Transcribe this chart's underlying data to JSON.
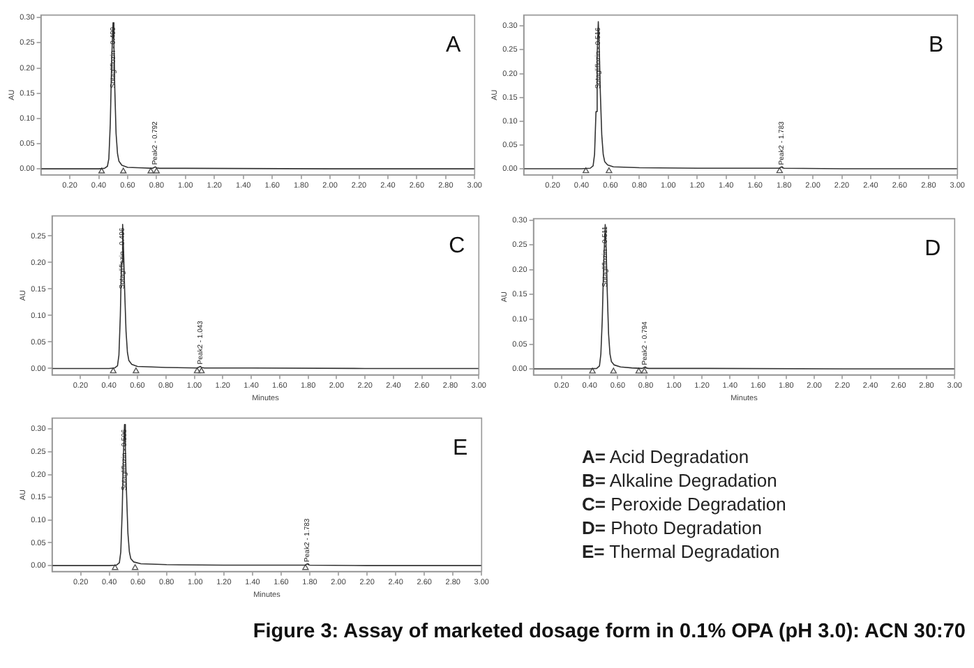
{
  "chart_data": [
    {
      "type": "line",
      "title": "A",
      "ylabel": "AU",
      "xlim": [
        0,
        3
      ],
      "ylim": [
        -0.012,
        0.305
      ],
      "xticks": [
        {
          "value": 0.2,
          "label": "0.20"
        },
        {
          "value": 0.4,
          "label": "0.40"
        },
        {
          "value": 0.6,
          "label": "0.60"
        },
        {
          "value": 0.8,
          "label": "0.80"
        },
        {
          "value": 1,
          "label": "1.00"
        },
        {
          "value": 1.2,
          "label": "1.20"
        },
        {
          "value": 1.4,
          "label": "1.40"
        },
        {
          "value": 1.6,
          "label": "1.60"
        },
        {
          "value": 1.8,
          "label": "1.80"
        },
        {
          "value": 2,
          "label": "2.00"
        },
        {
          "value": 2.2,
          "label": "2.20"
        },
        {
          "value": 2.4,
          "label": "2.40"
        },
        {
          "value": 2.6,
          "label": "2.60"
        },
        {
          "value": 2.8,
          "label": "2.80"
        },
        {
          "value": 3,
          "label": "3.00"
        }
      ],
      "yticks": [
        {
          "value": 0,
          "label": "0.00"
        },
        {
          "value": 0.05,
          "label": "0.05"
        },
        {
          "value": 0.1,
          "label": "0.10"
        },
        {
          "value": 0.15,
          "label": "0.15"
        },
        {
          "value": 0.2,
          "label": "0.20"
        },
        {
          "value": 0.25,
          "label": "0.25"
        },
        {
          "value": 0.3,
          "label": "0.30"
        }
      ],
      "series": [
        {
          "type": "line",
          "color": "#333333",
          "marker": "none",
          "x": [
            0,
            0.4,
            0.44,
            0.46,
            0.47,
            0.48,
            0.49,
            0.499,
            0.505,
            0.51,
            0.52,
            0.53,
            0.54,
            0.56,
            0.6,
            0.7,
            0.77,
            0.785,
            0.792,
            0.8,
            0.82,
            1,
            2,
            3
          ],
          "values": [
            0,
            0,
            0.001,
            0.005,
            0.02,
            0.09,
            0.22,
            0.29,
            0.25,
            0.17,
            0.07,
            0.03,
            0.015,
            0.007,
            0.003,
            0.002,
            0.001,
            0.003,
            0.004,
            0.002,
            0.001,
            0.001,
            0,
            0
          ]
        },
        {
          "type": "scatter",
          "color": "#555555",
          "marker": "triangle",
          "x": [
            0.42,
            0.57,
            0.76,
            0.8
          ],
          "values": [
            -0.005,
            -0.005,
            -0.005,
            -0.005
          ]
        }
      ],
      "annotations": [
        {
          "text": "Sotagliflozin - 0.499",
          "x": 0.499,
          "y": 0.16
        },
        {
          "text": "Peak2 - 0.792",
          "x": 0.792,
          "y": 0.008
        }
      ]
    },
    {
      "type": "line",
      "title": "B",
      "ylabel": "AU",
      "xlim": [
        0,
        3
      ],
      "ylim": [
        -0.013,
        0.323
      ],
      "xticks": [
        {
          "value": 0.2,
          "label": "0.20"
        },
        {
          "value": 0.4,
          "label": "0.40"
        },
        {
          "value": 0.6,
          "label": "0.60"
        },
        {
          "value": 0.8,
          "label": "0.80"
        },
        {
          "value": 1,
          "label": "1.00"
        },
        {
          "value": 1.2,
          "label": "1.20"
        },
        {
          "value": 1.4,
          "label": "1.40"
        },
        {
          "value": 1.6,
          "label": "1.60"
        },
        {
          "value": 1.8,
          "label": "1.80"
        },
        {
          "value": 2,
          "label": "2.00"
        },
        {
          "value": 2.2,
          "label": "2.20"
        },
        {
          "value": 2.4,
          "label": "2.40"
        },
        {
          "value": 2.6,
          "label": "2.60"
        },
        {
          "value": 2.8,
          "label": "2.80"
        },
        {
          "value": 3,
          "label": "3.00"
        }
      ],
      "yticks": [
        {
          "value": 0,
          "label": "0.00"
        },
        {
          "value": 0.05,
          "label": "0.05"
        },
        {
          "value": 0.1,
          "label": "0.10"
        },
        {
          "value": 0.15,
          "label": "0.15"
        },
        {
          "value": 0.2,
          "label": "0.20"
        },
        {
          "value": 0.25,
          "label": "0.25"
        },
        {
          "value": 0.3,
          "label": "0.30"
        }
      ],
      "series": [
        {
          "type": "line",
          "color": "#333333",
          "marker": "none",
          "x": [
            0,
            0.4,
            0.46,
            0.48,
            0.49,
            0.5,
            0.508,
            0.516,
            0.522,
            0.53,
            0.54,
            0.55,
            0.56,
            0.58,
            0.62,
            0.8,
            1.2,
            1.77,
            1.778,
            1.783,
            1.79,
            1.8,
            2.2,
            3
          ],
          "values": [
            0,
            0,
            0.001,
            0.006,
            0.03,
            0.12,
            0.24,
            0.309,
            0.26,
            0.16,
            0.07,
            0.03,
            0.015,
            0.008,
            0.004,
            0.002,
            0.001,
            0.001,
            0.003,
            0.004,
            0.002,
            0.001,
            0,
            0
          ]
        },
        {
          "type": "scatter",
          "color": "#555555",
          "marker": "triangle",
          "x": [
            0.43,
            0.59,
            1.77
          ],
          "values": [
            -0.005,
            -0.005,
            -0.005
          ]
        }
      ],
      "annotations": [
        {
          "text": "Sotagliflozin - 0.516",
          "x": 0.516,
          "y": 0.168
        },
        {
          "text": "Peak2 - 1.783",
          "x": 1.783,
          "y": 0.008
        }
      ]
    },
    {
      "type": "line",
      "title": "C",
      "xlabel": "Minutes",
      "ylabel": "AU",
      "xlim": [
        0,
        3
      ],
      "ylim": [
        -0.012,
        0.288
      ],
      "xticks": [
        {
          "value": 0.2,
          "label": "0.20"
        },
        {
          "value": 0.4,
          "label": "0.40"
        },
        {
          "value": 0.6,
          "label": "0.60"
        },
        {
          "value": 0.8,
          "label": "0.80"
        },
        {
          "value": 1,
          "label": "1.00"
        },
        {
          "value": 1.2,
          "label": "1.20"
        },
        {
          "value": 1.4,
          "label": "1.40"
        },
        {
          "value": 1.6,
          "label": "1.60"
        },
        {
          "value": 1.8,
          "label": "1.80"
        },
        {
          "value": 2,
          "label": "2.00"
        },
        {
          "value": 2.2,
          "label": "2.20"
        },
        {
          "value": 2.4,
          "label": "2.40"
        },
        {
          "value": 2.6,
          "label": "2.60"
        },
        {
          "value": 2.8,
          "label": "2.80"
        },
        {
          "value": 3,
          "label": "3.00"
        }
      ],
      "yticks": [
        {
          "value": 0,
          "label": "0.00"
        },
        {
          "value": 0.05,
          "label": "0.05"
        },
        {
          "value": 0.1,
          "label": "0.10"
        },
        {
          "value": 0.15,
          "label": "0.15"
        },
        {
          "value": 0.2,
          "label": "0.20"
        },
        {
          "value": 0.25,
          "label": "0.25"
        }
      ],
      "series": [
        {
          "type": "line",
          "color": "#333333",
          "marker": "none",
          "x": [
            0,
            0.4,
            0.44,
            0.46,
            0.47,
            0.48,
            0.488,
            0.496,
            0.502,
            0.51,
            0.52,
            0.53,
            0.54,
            0.56,
            0.6,
            0.8,
            1.02,
            1.035,
            1.043,
            1.05,
            1.07,
            1.4,
            2.2,
            3
          ],
          "values": [
            0,
            0,
            0.001,
            0.005,
            0.025,
            0.1,
            0.2,
            0.272,
            0.23,
            0.15,
            0.07,
            0.03,
            0.015,
            0.008,
            0.004,
            0.002,
            0.001,
            0.003,
            0.004,
            0.002,
            0.001,
            0.001,
            0,
            0
          ]
        },
        {
          "type": "scatter",
          "color": "#555555",
          "marker": "triangle",
          "x": [
            0.43,
            0.59,
            1.02,
            1.05
          ],
          "values": [
            -0.005,
            -0.005,
            -0.005,
            -0.005
          ]
        }
      ],
      "annotations": [
        {
          "text": "Sotagliflozin - 0.496",
          "x": 0.496,
          "y": 0.15
        },
        {
          "text": "Peak2 - 1.043",
          "x": 1.043,
          "y": 0.008
        }
      ]
    },
    {
      "type": "line",
      "title": "D",
      "xlabel": "Minutes",
      "ylabel": "AU",
      "xlim": [
        0,
        3
      ],
      "ylim": [
        -0.012,
        0.303
      ],
      "xticks": [
        {
          "value": 0.2,
          "label": "0.20"
        },
        {
          "value": 0.4,
          "label": "0.40"
        },
        {
          "value": 0.6,
          "label": "0.60"
        },
        {
          "value": 0.8,
          "label": "0.80"
        },
        {
          "value": 1,
          "label": "1.00"
        },
        {
          "value": 1.2,
          "label": "1.20"
        },
        {
          "value": 1.4,
          "label": "1.40"
        },
        {
          "value": 1.6,
          "label": "1.60"
        },
        {
          "value": 1.8,
          "label": "1.80"
        },
        {
          "value": 2,
          "label": "2.00"
        },
        {
          "value": 2.2,
          "label": "2.20"
        },
        {
          "value": 2.4,
          "label": "2.40"
        },
        {
          "value": 2.6,
          "label": "2.60"
        },
        {
          "value": 2.8,
          "label": "2.80"
        },
        {
          "value": 3,
          "label": "3.00"
        }
      ],
      "yticks": [
        {
          "value": 0,
          "label": "0.00"
        },
        {
          "value": 0.05,
          "label": "0.05"
        },
        {
          "value": 0.1,
          "label": "0.10"
        },
        {
          "value": 0.15,
          "label": "0.15"
        },
        {
          "value": 0.2,
          "label": "0.20"
        },
        {
          "value": 0.25,
          "label": "0.25"
        },
        {
          "value": 0.3,
          "label": "0.30"
        }
      ],
      "series": [
        {
          "type": "line",
          "color": "#333333",
          "marker": "none",
          "x": [
            0,
            0.4,
            0.45,
            0.47,
            0.48,
            0.49,
            0.5,
            0.511,
            0.517,
            0.525,
            0.535,
            0.545,
            0.555,
            0.575,
            0.62,
            0.7,
            0.775,
            0.788,
            0.794,
            0.8,
            0.82,
            1.2,
            2.2,
            3
          ],
          "values": [
            0,
            0,
            0.001,
            0.006,
            0.03,
            0.1,
            0.21,
            0.291,
            0.25,
            0.16,
            0.07,
            0.03,
            0.015,
            0.008,
            0.004,
            0.002,
            0.001,
            0.003,
            0.004,
            0.002,
            0.001,
            0.001,
            0,
            0
          ]
        },
        {
          "type": "scatter",
          "color": "#555555",
          "marker": "triangle",
          "x": [
            0.42,
            0.57,
            0.75,
            0.79
          ],
          "values": [
            -0.005,
            -0.005,
            -0.005,
            -0.005
          ]
        }
      ],
      "annotations": [
        {
          "text": "Sotagliflozin - 0.511",
          "x": 0.511,
          "y": 0.165
        },
        {
          "text": "Peak2 - 0.794",
          "x": 0.794,
          "y": 0.008
        }
      ]
    },
    {
      "type": "line",
      "title": "E",
      "xlabel": "Minutes",
      "ylabel": "AU",
      "xlim": [
        0,
        3
      ],
      "ylim": [
        -0.013,
        0.324
      ],
      "xticks": [
        {
          "value": 0.2,
          "label": "0.20"
        },
        {
          "value": 0.4,
          "label": "0.40"
        },
        {
          "value": 0.6,
          "label": "0.60"
        },
        {
          "value": 0.8,
          "label": "0.80"
        },
        {
          "value": 1,
          "label": "1.00"
        },
        {
          "value": 1.2,
          "label": "1.20"
        },
        {
          "value": 1.4,
          "label": "1.40"
        },
        {
          "value": 1.6,
          "label": "1.60"
        },
        {
          "value": 1.8,
          "label": "1.80"
        },
        {
          "value": 2,
          "label": "2.00"
        },
        {
          "value": 2.2,
          "label": "2.20"
        },
        {
          "value": 2.4,
          "label": "2.40"
        },
        {
          "value": 2.6,
          "label": "2.60"
        },
        {
          "value": 2.8,
          "label": "2.80"
        },
        {
          "value": 3,
          "label": "3.00"
        }
      ],
      "yticks": [
        {
          "value": 0,
          "label": "0.00"
        },
        {
          "value": 0.05,
          "label": "0.05"
        },
        {
          "value": 0.1,
          "label": "0.10"
        },
        {
          "value": 0.15,
          "label": "0.15"
        },
        {
          "value": 0.2,
          "label": "0.20"
        },
        {
          "value": 0.25,
          "label": "0.25"
        },
        {
          "value": 0.3,
          "label": "0.30"
        }
      ],
      "series": [
        {
          "type": "line",
          "color": "#333333",
          "marker": "none",
          "x": [
            0,
            0.4,
            0.45,
            0.47,
            0.48,
            0.49,
            0.498,
            0.506,
            0.512,
            0.52,
            0.53,
            0.54,
            0.55,
            0.57,
            0.62,
            0.8,
            1.2,
            1.77,
            1.778,
            1.783,
            1.79,
            1.8,
            2.2,
            3
          ],
          "values": [
            0,
            0,
            0.001,
            0.006,
            0.03,
            0.12,
            0.24,
            0.31,
            0.26,
            0.16,
            0.07,
            0.03,
            0.015,
            0.008,
            0.004,
            0.002,
            0.001,
            0.001,
            0.003,
            0.004,
            0.002,
            0.001,
            0,
            0
          ]
        },
        {
          "type": "scatter",
          "color": "#555555",
          "marker": "triangle",
          "x": [
            0.44,
            0.58,
            1.77
          ],
          "values": [
            -0.005,
            -0.005,
            -0.005
          ]
        }
      ],
      "annotations": [
        {
          "text": "Sotagliflozin - 0.506",
          "x": 0.506,
          "y": 0.165
        },
        {
          "text": "Peak2 - 1.783",
          "x": 1.783,
          "y": 0.008
        }
      ]
    },
    {
      "type": "other",
      "title": "Figure 3: Assay of marketed dosage form in 0.1% OPA (pH 3.0): ACN 30:70",
      "annotations": [
        "A= Acid Degradation",
        "B= Alkaline Degradation",
        "C= Peroxide Degradation",
        "D= Photo Degradation",
        "E= Thermal Degradation"
      ]
    }
  ]
}
